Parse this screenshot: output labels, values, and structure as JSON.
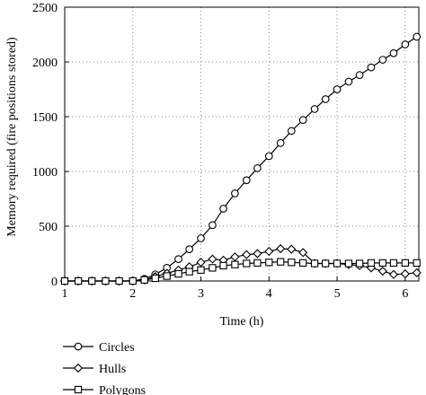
{
  "chart_data": {
    "type": "line",
    "title": "",
    "xlabel": "Time (h)",
    "ylabel": "Memory required (fire positions stored)",
    "xlim": [
      1,
      6.2
    ],
    "ylim": [
      0,
      2500
    ],
    "x_ticks": [
      "1",
      "2",
      "3",
      "4",
      "5",
      "6"
    ],
    "y_ticks": [
      "0",
      "500",
      "1000",
      "1500",
      "2000",
      "2500"
    ],
    "grid": true,
    "legend_placement": "bottom-left, below plot",
    "series": [
      {
        "name": "Circles",
        "marker": "circle",
        "x": [
          1.0,
          1.2,
          1.4,
          1.6,
          1.8,
          2.0,
          2.17,
          2.33,
          2.5,
          2.67,
          2.83,
          3.0,
          3.17,
          3.33,
          3.5,
          3.67,
          3.83,
          4.0,
          4.17,
          4.33,
          4.5,
          4.67,
          4.83,
          5.0,
          5.17,
          5.33,
          5.5,
          5.67,
          5.83,
          6.0,
          6.17
        ],
        "y": [
          0,
          0,
          0,
          0,
          0,
          0,
          20,
          60,
          120,
          200,
          290,
          390,
          510,
          660,
          800,
          920,
          1030,
          1140,
          1260,
          1370,
          1470,
          1570,
          1660,
          1750,
          1820,
          1880,
          1950,
          2020,
          2080,
          2160,
          2230
        ]
      },
      {
        "name": "Hulls",
        "marker": "diamond",
        "x": [
          1.0,
          1.2,
          1.4,
          1.6,
          1.8,
          2.0,
          2.17,
          2.33,
          2.5,
          2.67,
          2.83,
          3.0,
          3.17,
          3.33,
          3.5,
          3.67,
          3.83,
          4.0,
          4.17,
          4.33,
          4.5,
          4.67,
          4.83,
          5.0,
          5.17,
          5.33,
          5.5,
          5.67,
          5.83,
          6.0,
          6.17
        ],
        "y": [
          0,
          0,
          0,
          0,
          0,
          0,
          10,
          40,
          70,
          100,
          130,
          170,
          200,
          190,
          220,
          240,
          250,
          270,
          295,
          290,
          260,
          160,
          160,
          160,
          150,
          140,
          120,
          90,
          60,
          65,
          75
        ]
      },
      {
        "name": "Polygons",
        "marker": "square",
        "x": [
          1.0,
          1.2,
          1.4,
          1.6,
          1.8,
          2.0,
          2.17,
          2.33,
          2.5,
          2.67,
          2.83,
          3.0,
          3.17,
          3.33,
          3.5,
          3.67,
          3.83,
          4.0,
          4.17,
          4.33,
          4.5,
          4.67,
          4.83,
          5.0,
          5.17,
          5.33,
          5.5,
          5.67,
          5.83,
          6.0,
          6.17
        ],
        "y": [
          0,
          0,
          0,
          0,
          0,
          0,
          10,
          25,
          45,
          65,
          85,
          100,
          120,
          140,
          150,
          160,
          165,
          170,
          175,
          170,
          165,
          160,
          160,
          160,
          160,
          160,
          165,
          165,
          165,
          165,
          165
        ]
      }
    ]
  }
}
